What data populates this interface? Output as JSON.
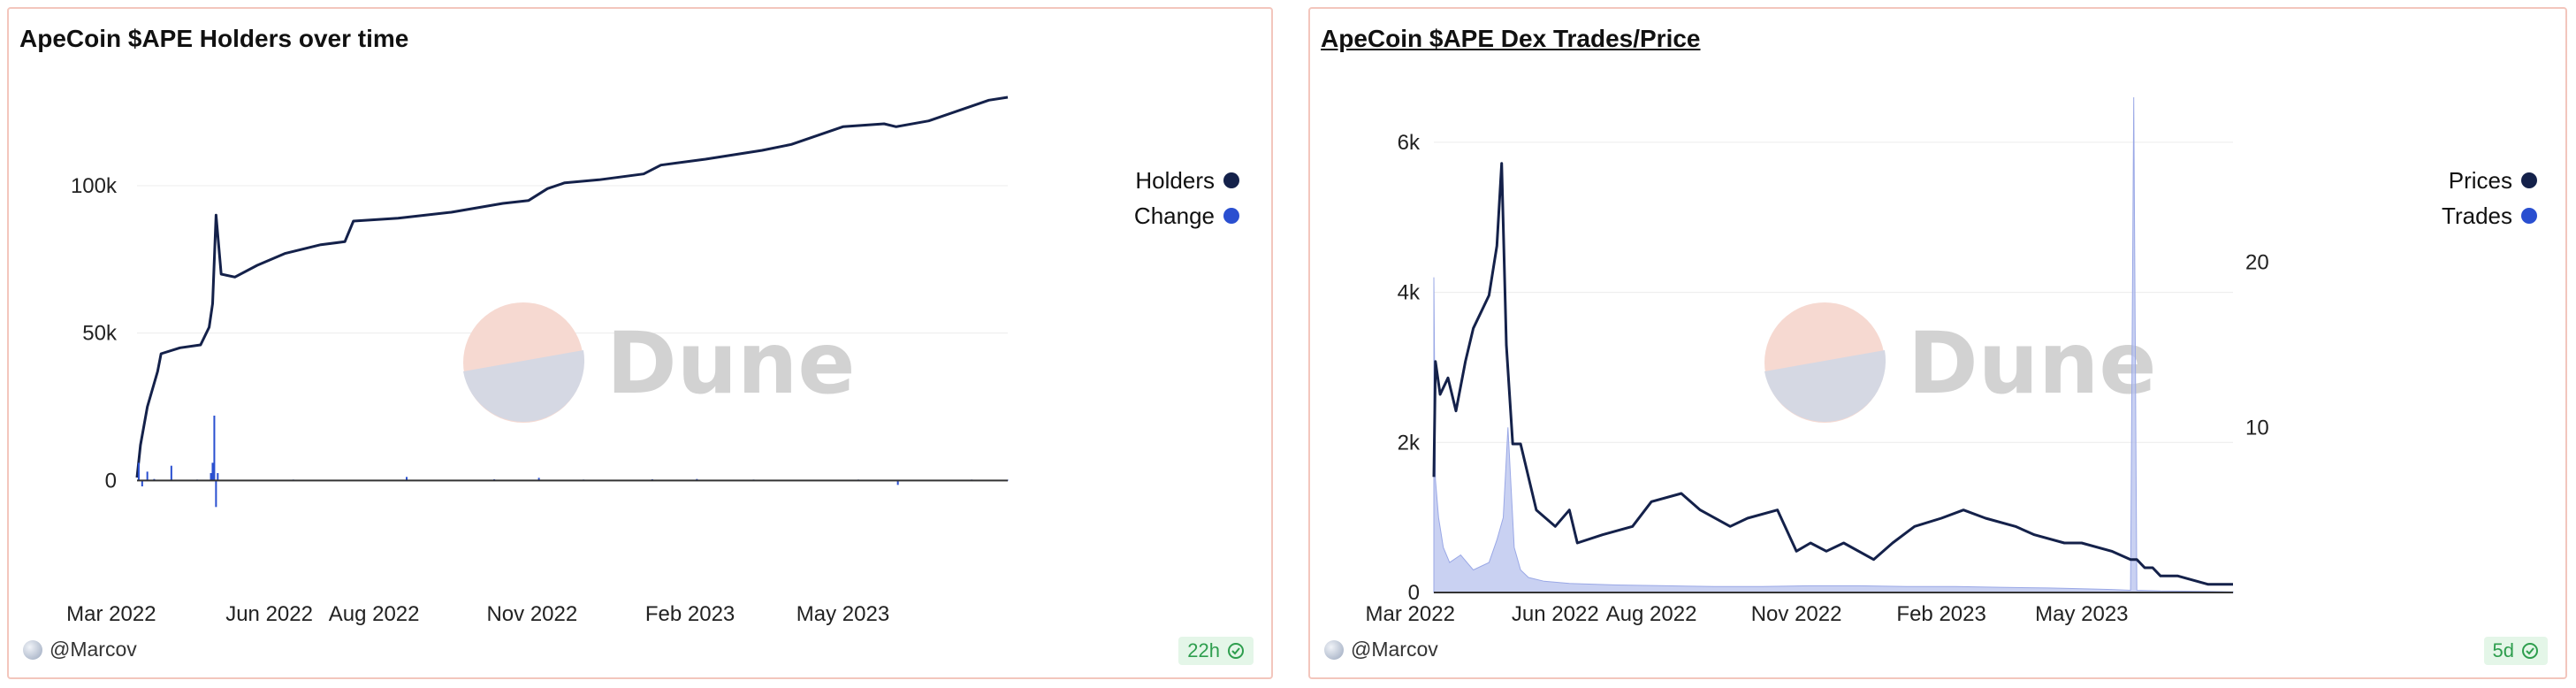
{
  "left": {
    "title": "ApeCoin $APE Holders over time",
    "author": "@Marcov",
    "badge": "22h",
    "watermark": "Dune",
    "legend": [
      {
        "label": "Holders",
        "color": "#14214a"
      },
      {
        "label": "Change",
        "color": "#2a4fd0"
      }
    ]
  },
  "right": {
    "title": "ApeCoin $APE Dex Trades/Price",
    "author": "@Marcov",
    "badge": "5d",
    "watermark": "Dune",
    "legend": [
      {
        "label": "Prices",
        "color": "#14214a"
      },
      {
        "label": "Trades",
        "color": "#2a4fd0"
      }
    ]
  },
  "chart_data": [
    {
      "type": "line",
      "title": "ApeCoin $APE Holders over time",
      "xlabel": "",
      "ylabel": "",
      "x_ticks": [
        "Mar 2022",
        "Jun 2022",
        "Aug 2022",
        "Nov 2022",
        "Feb 2023",
        "May 2023"
      ],
      "y_ticks": [
        "0",
        "50k",
        "100k"
      ],
      "ylim": [
        -20000,
        130000
      ],
      "x_range": [
        "2022-03-16",
        "2023-08-05"
      ],
      "grid": true,
      "legend_position": "right",
      "series": [
        {
          "name": "Holders",
          "color": "#14214a",
          "x": [
            "2022-03-16",
            "2022-03-18",
            "2022-03-22",
            "2022-03-28",
            "2022-03-30",
            "2022-04-10",
            "2022-04-22",
            "2022-04-27",
            "2022-04-29",
            "2022-05-01",
            "2022-05-04",
            "2022-05-12",
            "2022-05-25",
            "2022-06-10",
            "2022-07-01",
            "2022-07-15",
            "2022-07-20",
            "2022-08-15",
            "2022-09-15",
            "2022-10-15",
            "2022-10-30",
            "2022-11-10",
            "2022-11-20",
            "2022-12-10",
            "2023-01-05",
            "2023-01-15",
            "2023-02-10",
            "2023-03-15",
            "2023-04-01",
            "2023-05-01",
            "2023-05-25",
            "2023-06-01",
            "2023-06-20",
            "2023-07-10",
            "2023-07-25",
            "2023-08-05"
          ],
          "values": [
            1000,
            12000,
            25000,
            37000,
            43000,
            45000,
            46000,
            52000,
            60000,
            90000,
            70000,
            69000,
            73000,
            77000,
            80000,
            81000,
            88000,
            89000,
            91000,
            94000,
            95000,
            99000,
            101000,
            102000,
            104000,
            107000,
            109000,
            112000,
            114000,
            120000,
            121000,
            120000,
            122000,
            126000,
            129000,
            130000
          ]
        },
        {
          "name": "Change",
          "color": "#2a4fd0",
          "x": [
            "2022-03-16",
            "2022-03-17",
            "2022-03-19",
            "2022-03-22",
            "2022-03-26",
            "2022-04-05",
            "2022-04-20",
            "2022-04-28",
            "2022-04-29",
            "2022-04-30",
            "2022-05-01",
            "2022-05-02",
            "2022-05-06",
            "2022-06-15",
            "2022-08-01",
            "2022-08-20",
            "2022-10-10",
            "2022-11-05",
            "2022-12-01",
            "2023-01-10",
            "2023-02-05",
            "2023-03-10",
            "2023-04-05",
            "2023-05-10",
            "2023-06-02",
            "2023-06-20",
            "2023-07-15",
            "2023-08-05"
          ],
          "values": [
            0,
            6000,
            -2000,
            3000,
            500,
            5000,
            300,
            2500,
            6000,
            22000,
            -9000,
            2500,
            200,
            300,
            200,
            1200,
            400,
            900,
            300,
            400,
            500,
            300,
            200,
            300,
            -1500,
            200,
            300,
            200
          ]
        }
      ]
    },
    {
      "type": "line",
      "title": "ApeCoin $APE Dex Trades/Price",
      "xlabel": "",
      "ylabel": "",
      "x_ticks": [
        "Mar 2022",
        "Jun 2022",
        "Aug 2022",
        "Nov 2022",
        "Feb 2023",
        "May 2023"
      ],
      "y_ticks_left": [
        "0",
        "2k",
        "4k",
        "6k"
      ],
      "y_ticks_right": [
        "10",
        "20"
      ],
      "ylim_left": [
        0,
        6600
      ],
      "ylim_right": [
        0,
        30
      ],
      "x_range": [
        "2022-03-16",
        "2023-08-05"
      ],
      "grid": true,
      "legend_position": "right",
      "series": [
        {
          "name": "Prices",
          "color": "#14214a",
          "axis": "right",
          "x": [
            "2022-03-16",
            "2022-03-17",
            "2022-03-20",
            "2022-03-25",
            "2022-03-30",
            "2022-04-05",
            "2022-04-10",
            "2022-04-15",
            "2022-04-20",
            "2022-04-25",
            "2022-04-28",
            "2022-05-01",
            "2022-05-05",
            "2022-05-10",
            "2022-05-20",
            "2022-06-01",
            "2022-06-10",
            "2022-06-15",
            "2022-07-01",
            "2022-07-20",
            "2022-08-01",
            "2022-08-20",
            "2022-09-01",
            "2022-09-20",
            "2022-10-01",
            "2022-10-20",
            "2022-11-01",
            "2022-11-10",
            "2022-11-20",
            "2022-12-01",
            "2022-12-20",
            "2023-01-01",
            "2023-01-15",
            "2023-02-01",
            "2023-02-15",
            "2023-03-01",
            "2023-03-20",
            "2023-04-01",
            "2023-04-20",
            "2023-05-01",
            "2023-05-20",
            "2023-06-01",
            "2023-06-05",
            "2023-06-10",
            "2023-06-15",
            "2023-06-20",
            "2023-07-01",
            "2023-07-20",
            "2023-08-05"
          ],
          "values": [
            7,
            14,
            12,
            13,
            11,
            14,
            16,
            17,
            18,
            21,
            26,
            15,
            9,
            9,
            5,
            4,
            5,
            3,
            3.5,
            4,
            5.5,
            6,
            5,
            4,
            4.5,
            5,
            2.5,
            3,
            2.5,
            3,
            2,
            3,
            4,
            4.5,
            5,
            4.5,
            4,
            3.5,
            3,
            3,
            2.5,
            2,
            2,
            1.5,
            1.5,
            1,
            1,
            0.5,
            0.5
          ]
        },
        {
          "name": "Trades",
          "color": "#2a4fd0",
          "axis": "left",
          "x": [
            "2022-03-16",
            "2022-03-17",
            "2022-03-19",
            "2022-03-22",
            "2022-03-26",
            "2022-04-02",
            "2022-04-10",
            "2022-04-20",
            "2022-04-25",
            "2022-04-29",
            "2022-05-02",
            "2022-05-06",
            "2022-05-10",
            "2022-05-15",
            "2022-05-25",
            "2022-06-10",
            "2022-07-10",
            "2022-08-10",
            "2022-09-10",
            "2022-10-10",
            "2022-11-10",
            "2022-12-10",
            "2023-01-10",
            "2023-02-10",
            "2023-03-10",
            "2023-04-10",
            "2023-05-01",
            "2023-05-20",
            "2023-06-01",
            "2023-06-03",
            "2023-06-05",
            "2023-06-20",
            "2023-07-20",
            "2023-08-05"
          ],
          "values": [
            4200,
            1500,
            1000,
            600,
            400,
            500,
            300,
            400,
            700,
            1000,
            2200,
            600,
            300,
            200,
            150,
            120,
            100,
            90,
            80,
            80,
            90,
            90,
            80,
            80,
            70,
            60,
            50,
            40,
            30,
            6600,
            30,
            20,
            15,
            10
          ]
        }
      ]
    }
  ]
}
